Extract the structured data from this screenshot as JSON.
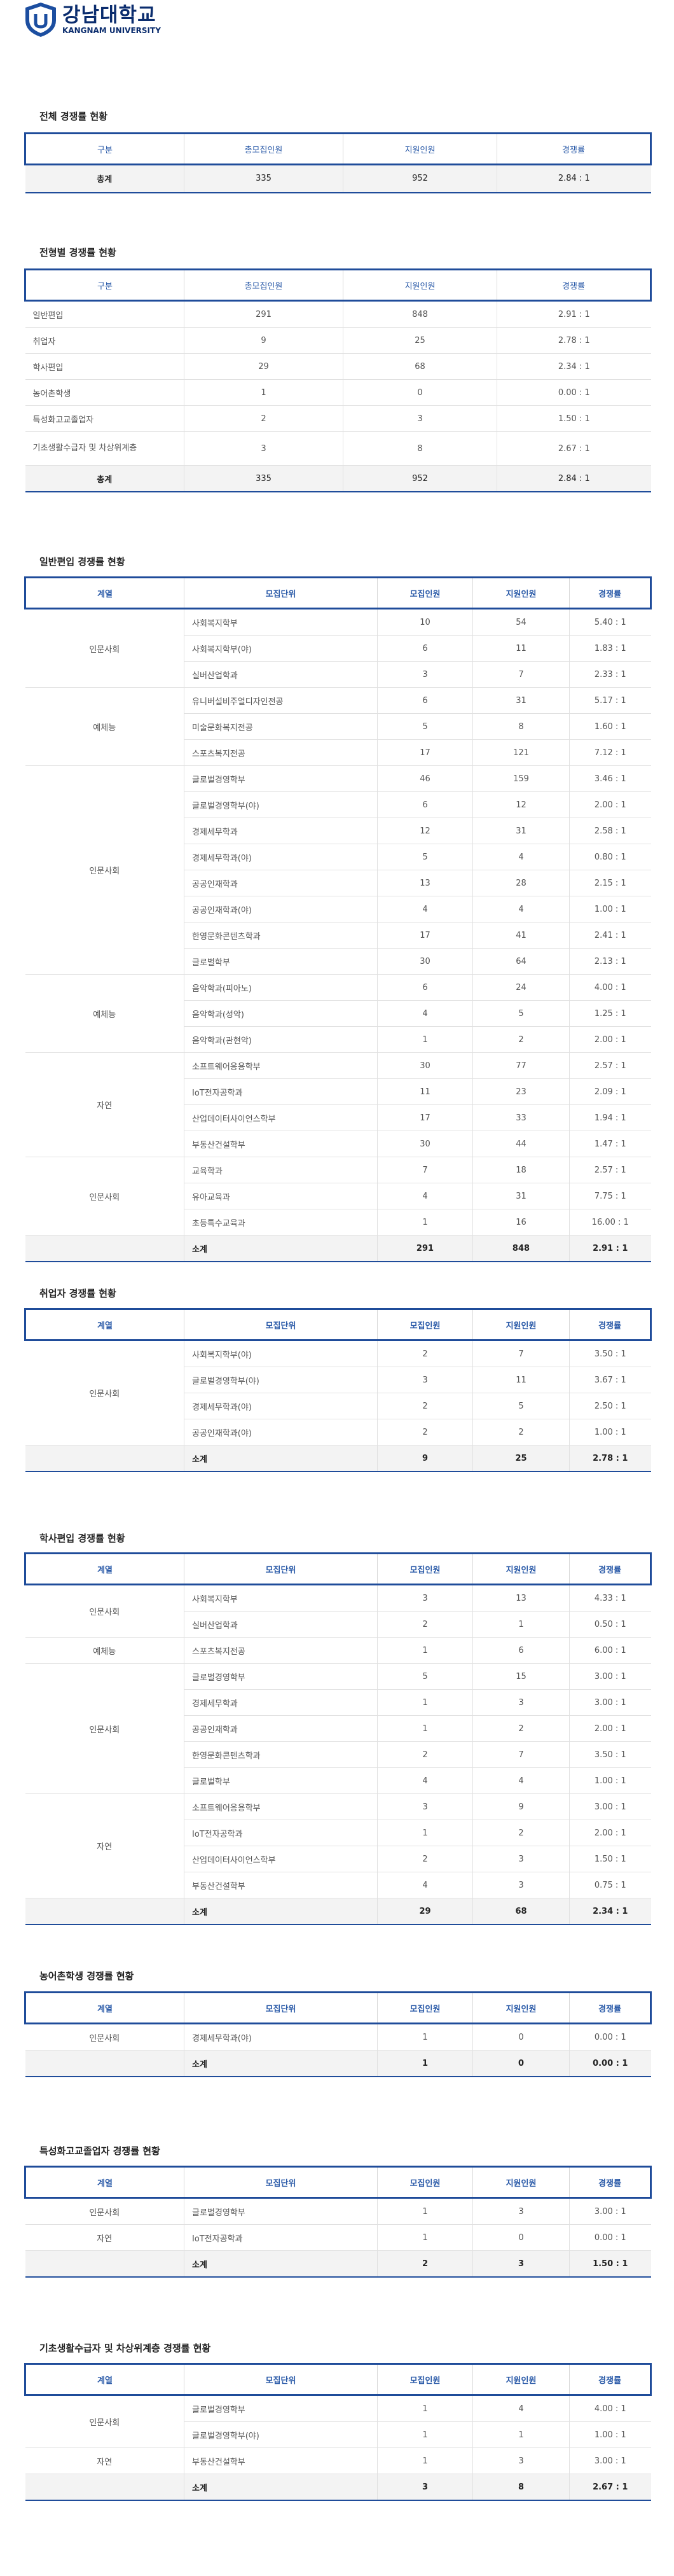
{
  "logo": {
    "korean": "강남대학교",
    "english": "KANGNAM UNIVERSITY"
  },
  "overall": {
    "title": "전체 경쟁률 현황",
    "headers": [
      "구분",
      "총모집인원",
      "지원인원",
      "경쟁률"
    ],
    "total": [
      "총계",
      "335",
      "952",
      "2.84 : 1"
    ]
  },
  "by_type": {
    "title": "전형별 경쟁률 현황",
    "headers": [
      "구분",
      "총모집인원",
      "지원인원",
      "경쟁률"
    ],
    "rows": [
      [
        "일반편입",
        "291",
        "848",
        "2.91 : 1"
      ],
      [
        "취업자",
        "9",
        "25",
        "2.78 : 1"
      ],
      [
        "학사편입",
        "29",
        "68",
        "2.34 : 1"
      ],
      [
        "농어촌학생",
        "1",
        "0",
        "0.00 : 1"
      ],
      [
        "특성화고교졸업자",
        "2",
        "3",
        "1.50 : 1"
      ],
      [
        "기초생활수급자 및 차상위계층",
        "3",
        "8",
        "2.67 : 1"
      ]
    ],
    "total": [
      "총계",
      "335",
      "952",
      "2.84 : 1"
    ]
  },
  "detail_headers": [
    "계열",
    "모집단위",
    "모집인원",
    "지원인원",
    "경쟁률"
  ],
  "general": {
    "title": "일반편입 경쟁률 현황",
    "groups": [
      {
        "field": "인문사회",
        "rows": [
          [
            "사회복지학부",
            "10",
            "54",
            "5.40 : 1"
          ],
          [
            "사회복지학부(야)",
            "6",
            "11",
            "1.83 : 1"
          ],
          [
            "실버산업학과",
            "3",
            "7",
            "2.33 : 1"
          ]
        ]
      },
      {
        "field": "예체능",
        "rows": [
          [
            "유니버설비주얼디자인전공",
            "6",
            "31",
            "5.17 : 1"
          ],
          [
            "미술문화복지전공",
            "5",
            "8",
            "1.60 : 1"
          ],
          [
            "스포츠복지전공",
            "17",
            "121",
            "7.12 : 1"
          ]
        ]
      },
      {
        "field": "인문사회",
        "rows": [
          [
            "글로벌경영학부",
            "46",
            "159",
            "3.46 : 1"
          ],
          [
            "글로벌경영학부(야)",
            "6",
            "12",
            "2.00 : 1"
          ],
          [
            "경제세무학과",
            "12",
            "31",
            "2.58 : 1"
          ],
          [
            "경제세무학과(야)",
            "5",
            "4",
            "0.80 : 1"
          ],
          [
            "공공인재학과",
            "13",
            "28",
            "2.15 : 1"
          ],
          [
            "공공인재학과(야)",
            "4",
            "4",
            "1.00 : 1"
          ],
          [
            "한영문화콘텐츠학과",
            "17",
            "41",
            "2.41 : 1"
          ],
          [
            "글로벌학부",
            "30",
            "64",
            "2.13 : 1"
          ]
        ]
      },
      {
        "field": "예체능",
        "rows": [
          [
            "음악학과(피아노)",
            "6",
            "24",
            "4.00 : 1"
          ],
          [
            "음악학과(성악)",
            "4",
            "5",
            "1.25 : 1"
          ],
          [
            "음악학과(관현악)",
            "1",
            "2",
            "2.00 : 1"
          ]
        ]
      },
      {
        "field": "자연",
        "rows": [
          [
            "소프트웨어응용학부",
            "30",
            "77",
            "2.57 : 1"
          ],
          [
            "IoT전자공학과",
            "11",
            "23",
            "2.09 : 1"
          ],
          [
            "산업데이터사이언스학부",
            "17",
            "33",
            "1.94 : 1"
          ],
          [
            "부동산건설학부",
            "30",
            "44",
            "1.47 : 1"
          ]
        ]
      },
      {
        "field": "인문사회",
        "rows": [
          [
            "교육학과",
            "7",
            "18",
            "2.57 : 1"
          ],
          [
            "유아교육과",
            "4",
            "31",
            "7.75 : 1"
          ],
          [
            "초등특수교육과",
            "1",
            "16",
            "16.00 : 1"
          ]
        ]
      }
    ],
    "total": [
      "소계",
      "291",
      "848",
      "2.91 : 1"
    ]
  },
  "employed": {
    "title": "취업자 경쟁률 현황",
    "groups": [
      {
        "field": "인문사회",
        "rows": [
          [
            "사회복지학부(야)",
            "2",
            "7",
            "3.50 : 1"
          ],
          [
            "글로벌경영학부(야)",
            "3",
            "11",
            "3.67 : 1"
          ],
          [
            "경제세무학과(야)",
            "2",
            "5",
            "2.50 : 1"
          ],
          [
            "공공인재학과(야)",
            "2",
            "2",
            "1.00 : 1"
          ]
        ]
      }
    ],
    "total": [
      "소계",
      "9",
      "25",
      "2.78 : 1"
    ]
  },
  "bachelor": {
    "title": "학사편입 경쟁률 현황",
    "groups": [
      {
        "field": "인문사회",
        "rows": [
          [
            "사회복지학부",
            "3",
            "13",
            "4.33 : 1"
          ],
          [
            "실버산업학과",
            "2",
            "1",
            "0.50 : 1"
          ]
        ]
      },
      {
        "field": "예체능",
        "rows": [
          [
            "스포츠복지전공",
            "1",
            "6",
            "6.00 : 1"
          ]
        ]
      },
      {
        "field": "인문사회",
        "rows": [
          [
            "글로벌경영학부",
            "5",
            "15",
            "3.00 : 1"
          ],
          [
            "경제세무학과",
            "1",
            "3",
            "3.00 : 1"
          ],
          [
            "공공인재학과",
            "1",
            "2",
            "2.00 : 1"
          ],
          [
            "한영문화콘텐츠학과",
            "2",
            "7",
            "3.50 : 1"
          ],
          [
            "글로벌학부",
            "4",
            "4",
            "1.00 : 1"
          ]
        ]
      },
      {
        "field": "자연",
        "rows": [
          [
            "소프트웨어응용학부",
            "3",
            "9",
            "3.00 : 1"
          ],
          [
            "IoT전자공학과",
            "1",
            "2",
            "2.00 : 1"
          ],
          [
            "산업데이터사이언스학부",
            "2",
            "3",
            "1.50 : 1"
          ],
          [
            "부동산건설학부",
            "4",
            "3",
            "0.75 : 1"
          ]
        ]
      }
    ],
    "total": [
      "소계",
      "29",
      "68",
      "2.34 : 1"
    ]
  },
  "farm": {
    "title": "농어촌학생 경쟁률 현황",
    "groups": [
      {
        "field": "인문사회",
        "rows": [
          [
            "경제세무학과(야)",
            "1",
            "0",
            "0.00 : 1"
          ]
        ]
      }
    ],
    "total": [
      "소계",
      "1",
      "0",
      "0.00 : 1"
    ]
  },
  "vocational": {
    "title": "특성화고교졸업자 경쟁률 현황",
    "groups": [
      {
        "field": "인문사회",
        "rows": [
          [
            "글로벌경영학부",
            "1",
            "3",
            "3.00 : 1"
          ]
        ]
      },
      {
        "field": "자연",
        "rows": [
          [
            "IoT전자공학과",
            "1",
            "0",
            "0.00 : 1"
          ]
        ]
      }
    ],
    "total": [
      "소계",
      "2",
      "3",
      "1.50 : 1"
    ]
  },
  "basic": {
    "title": "기초생활수급자 및 차상위계층 경쟁률 현황",
    "groups": [
      {
        "field": "인문사회",
        "rows": [
          [
            "글로벌경영학부",
            "1",
            "4",
            "4.00 : 1"
          ],
          [
            "글로벌경영학부(야)",
            "1",
            "1",
            "1.00 : 1"
          ]
        ]
      },
      {
        "field": "자연",
        "rows": [
          [
            "부동산건설학부",
            "1",
            "3",
            "3.00 : 1"
          ]
        ]
      }
    ],
    "total": [
      "소계",
      "3",
      "8",
      "2.67 : 1"
    ]
  }
}
